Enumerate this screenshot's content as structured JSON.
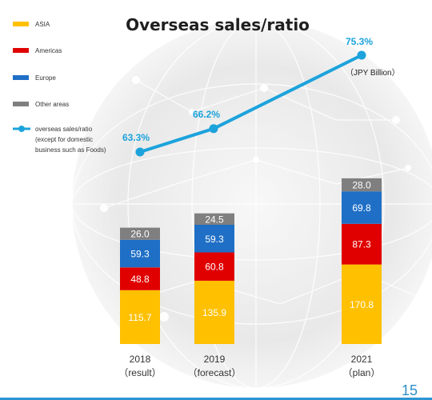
{
  "colors": {
    "asia": "#ffc000",
    "americas": "#e00000",
    "europe": "#1f6fc6",
    "other": "#7f7f7f",
    "ratio_line": "#1ca3dc",
    "page_number": "#2d8fc9",
    "bottom_bar": "#2b95d4"
  },
  "page_number": "15",
  "chart_data": {
    "type": "bar",
    "stacked": true,
    "title": "Overseas sales/ratio",
    "unit_label": "（JPY Billion）",
    "categories": [
      "2018",
      "2019",
      "2021"
    ],
    "category_sublabels": [
      "（result）",
      "（forecast）",
      "（plan）"
    ],
    "series": [
      {
        "name": "ASIA",
        "color": "#ffc000",
        "values": [
          115.7,
          135.9,
          170.8
        ],
        "labels": [
          "115.7",
          "135.9",
          "170.8"
        ]
      },
      {
        "name": "Americas",
        "color": "#e00000",
        "values": [
          48.8,
          60.8,
          87.3
        ],
        "labels": [
          "48.8",
          "60.8",
          "87.3"
        ]
      },
      {
        "name": "Europe",
        "color": "#1f6fc6",
        "values": [
          59.3,
          59.3,
          69.8
        ],
        "labels": [
          "59.3",
          "59.3",
          "69.8"
        ]
      },
      {
        "name": "Other areas",
        "color": "#7f7f7f",
        "values": [
          26.0,
          24.5,
          28.0
        ],
        "labels": [
          "26.0",
          "24.5",
          "28.0"
        ]
      }
    ],
    "ratio_series": {
      "name": "overseas sales/ratio",
      "name_lines": [
        "overseas sales/ratio",
        "(except for domestic",
        "business such as Foods)"
      ],
      "values": [
        63.3,
        66.2,
        75.3
      ],
      "labels": [
        "63.3%",
        "66.2%",
        "75.3%"
      ]
    },
    "legend": [
      "ASIA",
      "Americas",
      "Europe",
      "Other areas",
      "overseas sales/ratio"
    ],
    "grid": false
  }
}
